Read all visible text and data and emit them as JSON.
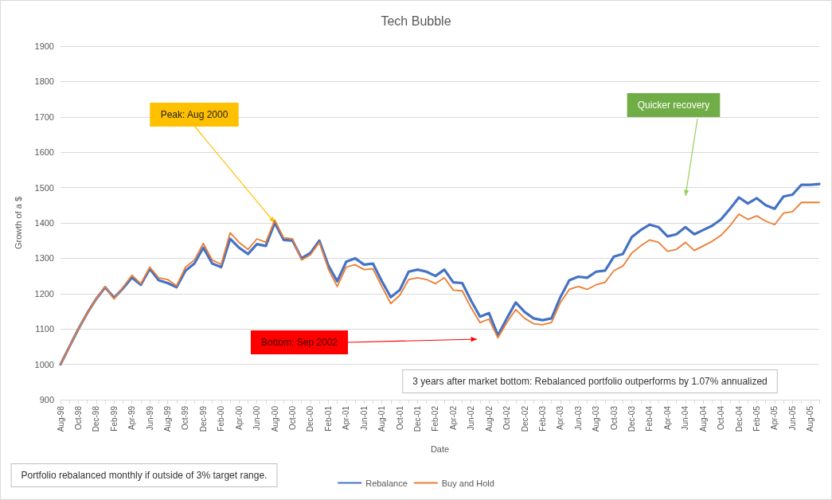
{
  "chart_data": {
    "type": "line",
    "title": "Tech Bubble",
    "xlabel": "Date",
    "ylabel": "Growth of a $",
    "categories": [
      "Aug-98",
      null,
      "Oct-98",
      null,
      "Dec-98",
      null,
      "Feb-99",
      null,
      "Apr-99",
      null,
      "Jun-99",
      null,
      "Aug-99",
      null,
      "Oct-99",
      null,
      "Dec-99",
      null,
      "Feb-00",
      null,
      "Apr-00",
      null,
      "Jun-00",
      null,
      "Aug-00",
      null,
      "Oct-00",
      null,
      "Dec-00",
      null,
      "Feb-01",
      null,
      "Apr-01",
      null,
      "Jun-01",
      null,
      "Aug-01",
      null,
      "Oct-01",
      null,
      "Dec-01",
      null,
      "Feb-02",
      null,
      "Apr-02",
      null,
      "Jun-02",
      null,
      "Aug-02",
      null,
      "Oct-02",
      null,
      "Dec-02",
      null,
      "Feb-03",
      null,
      "Apr-03",
      null,
      "Jun-03",
      null,
      "Aug-03",
      null,
      "Oct-03",
      null,
      "Dec-03",
      null,
      "Feb-04",
      null,
      "Apr-04",
      null,
      "Jun-04",
      null,
      "Aug-04",
      null,
      "Oct-04",
      null,
      "Dec-04",
      null,
      "Feb-05",
      null,
      "Apr-05",
      null,
      "Jun-05",
      null,
      "Aug-05",
      null
    ],
    "series": [
      {
        "name": "Rebalance",
        "color": "#4472c4",
        "values": [
          1000,
          1050,
          1100,
          1145,
          1185,
          1218,
          1188,
          1215,
          1245,
          1225,
          1270,
          1238,
          1230,
          1218,
          1265,
          1285,
          1330,
          1285,
          1275,
          1355,
          1330,
          1312,
          1340,
          1335,
          1400,
          1352,
          1350,
          1300,
          1315,
          1350,
          1280,
          1235,
          1290,
          1300,
          1282,
          1285,
          1235,
          1190,
          1210,
          1262,
          1268,
          1262,
          1250,
          1268,
          1232,
          1230,
          1180,
          1135,
          1145,
          1082,
          1130,
          1175,
          1148,
          1130,
          1125,
          1130,
          1190,
          1238,
          1248,
          1245,
          1262,
          1265,
          1305,
          1312,
          1360,
          1380,
          1395,
          1388,
          1362,
          1368,
          1388,
          1368,
          1380,
          1392,
          1410,
          1440,
          1472,
          1455,
          1470,
          1450,
          1440,
          1475,
          1480,
          1508,
          1508,
          1510
        ]
      },
      {
        "name": "Buy and Hold",
        "color": "#ed7d31",
        "values": [
          1000,
          1050,
          1100,
          1145,
          1185,
          1220,
          1185,
          1218,
          1252,
          1228,
          1275,
          1245,
          1240,
          1222,
          1275,
          1295,
          1342,
          1295,
          1283,
          1372,
          1345,
          1325,
          1355,
          1345,
          1408,
          1358,
          1355,
          1295,
          1310,
          1345,
          1270,
          1220,
          1275,
          1282,
          1268,
          1270,
          1220,
          1172,
          1195,
          1240,
          1245,
          1240,
          1228,
          1245,
          1210,
          1208,
          1160,
          1118,
          1128,
          1075,
          1118,
          1155,
          1130,
          1115,
          1112,
          1118,
          1175,
          1212,
          1220,
          1212,
          1225,
          1232,
          1265,
          1278,
          1315,
          1335,
          1352,
          1345,
          1320,
          1325,
          1345,
          1322,
          1335,
          1348,
          1365,
          1392,
          1425,
          1410,
          1420,
          1405,
          1395,
          1428,
          1432,
          1458,
          1458,
          1458
        ]
      }
    ],
    "ylim": [
      900,
      1900
    ],
    "yticks": [
      900,
      1000,
      1100,
      1200,
      1300,
      1400,
      1500,
      1600,
      1700,
      1800,
      1900
    ],
    "grid": "y",
    "legend": "bottom",
    "marker": "none",
    "line_style": "solid",
    "annotations": [
      {
        "text": "Peak: Aug 2000",
        "x": "Aug-00",
        "y": 1400
      },
      "Quicker recovery",
      "Bottom: Sep 2002",
      "3 years after market bottom: Rebalanced portfolio outperforms by 1.07% annualized",
      "Portfolio rebalanced monthly if outside of 3% target range."
    ]
  }
}
